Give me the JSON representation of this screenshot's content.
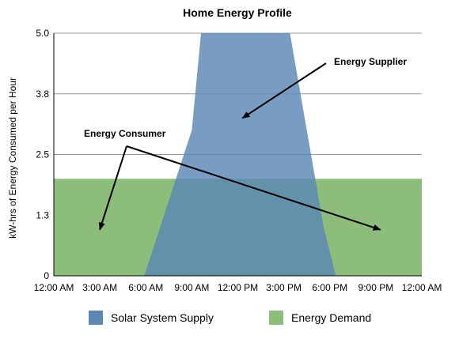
{
  "chart_data": {
    "type": "area",
    "title": "Home Energy Profile",
    "ylabel": "kW-hrs of Energy Consumed per Hour",
    "xlabel": "",
    "x_ticks": [
      "12:00 AM",
      "3:00 AM",
      "6:00 AM",
      "9:00 AM",
      "12:00 PM",
      "3:00 PM",
      "6:00 PM",
      "9:00 PM",
      "12:00 AM"
    ],
    "y_ticks": [
      "0",
      "1.3",
      "2.5",
      "3.8",
      "5.0"
    ],
    "xlim_hours": [
      0,
      24
    ],
    "ylim": [
      0,
      5.0
    ],
    "grid": true,
    "legend_placement": "bottom",
    "series": [
      {
        "name": "Energy Demand",
        "color": "#8dbd7a",
        "points": [
          [
            0,
            2.0
          ],
          [
            24,
            2.0
          ]
        ]
      },
      {
        "name": "Solar System Supply",
        "color": "#5b87b5",
        "points": [
          [
            5.9,
            0
          ],
          [
            9.0,
            3.0
          ],
          [
            9.6,
            5.0
          ],
          [
            15.4,
            5.0
          ],
          [
            17.6,
            1.0
          ],
          [
            18.4,
            0
          ]
        ]
      }
    ],
    "legend": [
      "Solar System Supply",
      "Energy Demand"
    ],
    "annotations": [
      {
        "text": "Energy Supplier",
        "targets": [
          [
            12.3,
            3.25
          ]
        ]
      },
      {
        "text": "Energy Consumer",
        "targets": [
          [
            3.0,
            0.95
          ],
          [
            21.3,
            0.95
          ]
        ]
      }
    ]
  }
}
